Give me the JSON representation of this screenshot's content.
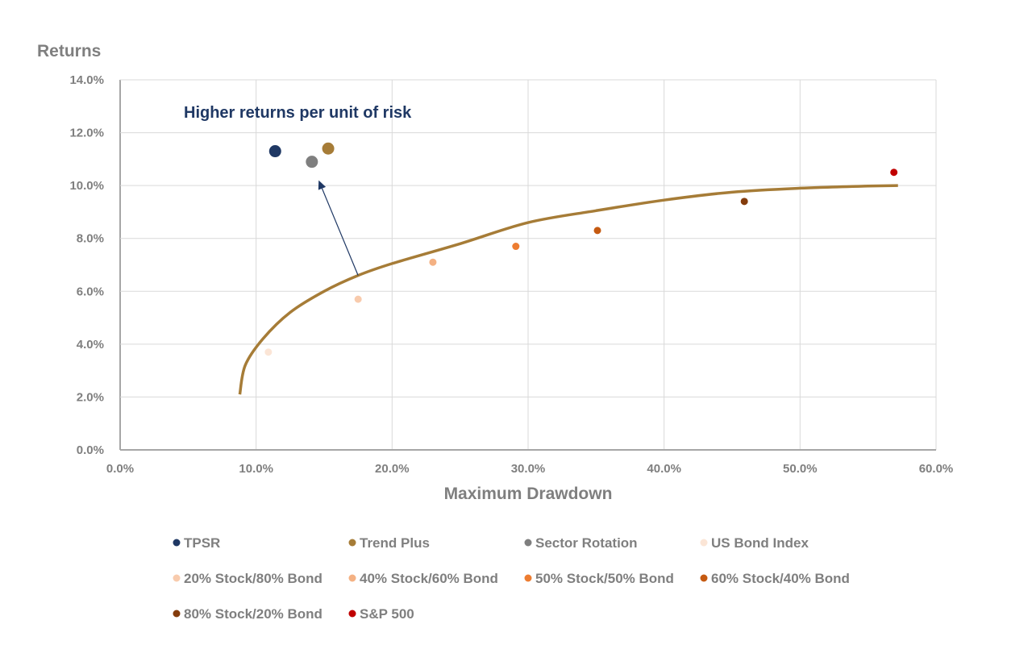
{
  "chart_data": {
    "type": "scatter",
    "ylabel": "Returns",
    "xlabel": "Maximum Drawdown",
    "annotation": "Higher returns per unit of risk",
    "xlim": [
      0,
      60
    ],
    "ylim": [
      0,
      14
    ],
    "x_ticks": [
      "0.0%",
      "10.0%",
      "20.0%",
      "30.0%",
      "40.0%",
      "50.0%",
      "60.0%"
    ],
    "y_ticks": [
      "0.0%",
      "2.0%",
      "4.0%",
      "6.0%",
      "8.0%",
      "10.0%",
      "12.0%",
      "14.0%"
    ],
    "grid": true,
    "legend_position": "bottom",
    "series": [
      {
        "name": "TPSR",
        "color": "#1f3864",
        "x": 11.4,
        "y": 11.3,
        "size": "large"
      },
      {
        "name": "Trend Plus",
        "color": "#a67c37",
        "x": 15.3,
        "y": 11.4,
        "size": "large"
      },
      {
        "name": "Sector Rotation",
        "color": "#7f7f7f",
        "x": 14.1,
        "y": 10.9,
        "size": "large"
      },
      {
        "name": "US Bond Index",
        "color": "#fbe5d6",
        "x": 10.9,
        "y": 3.7,
        "size": "small"
      },
      {
        "name": "20% Stock/80% Bond",
        "color": "#f8cbad",
        "x": 17.5,
        "y": 5.7,
        "size": "small"
      },
      {
        "name": "40% Stock/60% Bond",
        "color": "#f4b183",
        "x": 23.0,
        "y": 7.1,
        "size": "small"
      },
      {
        "name": "50% Stock/50% Bond",
        "color": "#ed7d31",
        "x": 29.1,
        "y": 7.7,
        "size": "small"
      },
      {
        "name": "60% Stock/40% Bond",
        "color": "#c55a11",
        "x": 35.1,
        "y": 8.3,
        "size": "small"
      },
      {
        "name": "80% Stock/20% Bond",
        "color": "#843c0c",
        "x": 45.9,
        "y": 9.4,
        "size": "small"
      },
      {
        "name": "S&P 500",
        "color": "#c00000",
        "x": 56.9,
        "y": 10.5,
        "size": "small"
      }
    ],
    "curve": {
      "color": "#a67c37",
      "points": [
        [
          8.8,
          2.1
        ],
        [
          9.2,
          3.2
        ],
        [
          10.5,
          4.2
        ],
        [
          12.5,
          5.2
        ],
        [
          15.0,
          6.0
        ],
        [
          17.5,
          6.6
        ],
        [
          20.0,
          7.05
        ],
        [
          25.0,
          7.8
        ],
        [
          30.0,
          8.6
        ],
        [
          35.0,
          9.05
        ],
        [
          40.0,
          9.45
        ],
        [
          45.0,
          9.75
        ],
        [
          50.0,
          9.9
        ],
        [
          55.0,
          9.98
        ],
        [
          57.2,
          10.0
        ]
      ]
    },
    "arrow": {
      "from": [
        17.5,
        6.6
      ],
      "to": [
        14.6,
        10.2
      ],
      "color": "#1f3864"
    }
  }
}
